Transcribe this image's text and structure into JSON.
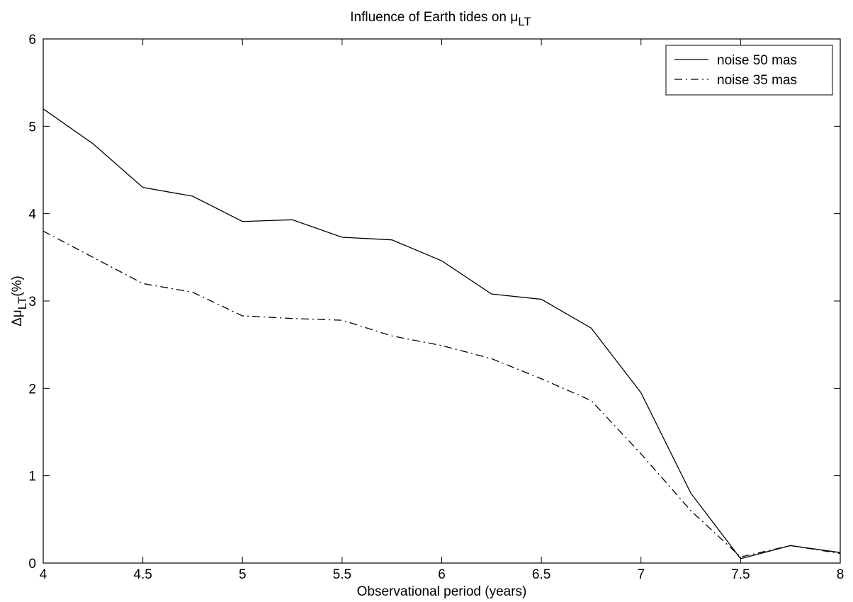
{
  "chart_data": {
    "type": "line",
    "title": "Influence of Earth tides on μ",
    "title_sub": "LT",
    "xlabel": "Observational period (years)",
    "ylabel_main": "Δμ",
    "ylabel_sub": "LT",
    "ylabel_suffix": "(%)",
    "xlim": [
      4,
      8
    ],
    "ylim": [
      0,
      6
    ],
    "xticks": [
      4,
      4.5,
      5,
      5.5,
      6,
      6.5,
      7,
      7.5,
      8
    ],
    "xtick_labels": [
      "4",
      "4.5",
      "5",
      "5.5",
      "6",
      "6.5",
      "7",
      "7.5",
      "8"
    ],
    "yticks": [
      0,
      1,
      2,
      3,
      4,
      5,
      6
    ],
    "ytick_labels": [
      "0",
      "1",
      "2",
      "3",
      "4",
      "5",
      "6"
    ],
    "grid": false,
    "legend_position": "top-right",
    "x": [
      4,
      4.25,
      4.5,
      4.75,
      5,
      5.25,
      5.5,
      5.75,
      6,
      6.25,
      6.5,
      6.75,
      7,
      7.25,
      7.5,
      7.75,
      8
    ],
    "series": [
      {
        "name": "noise 50 mas",
        "style": "solid",
        "color": "#000000",
        "values": [
          5.2,
          4.8,
          4.3,
          4.2,
          3.91,
          3.93,
          3.73,
          3.7,
          3.46,
          3.08,
          3.02,
          2.69,
          1.95,
          0.8,
          0.05,
          0.2,
          0.12
        ]
      },
      {
        "name": "noise 35 mas",
        "style": "dashdot",
        "color": "#000000",
        "values": [
          3.8,
          3.5,
          3.2,
          3.1,
          2.83,
          2.8,
          2.78,
          2.6,
          2.49,
          2.34,
          2.11,
          1.86,
          1.25,
          0.6,
          0.07,
          0.2,
          0.11
        ]
      }
    ]
  }
}
